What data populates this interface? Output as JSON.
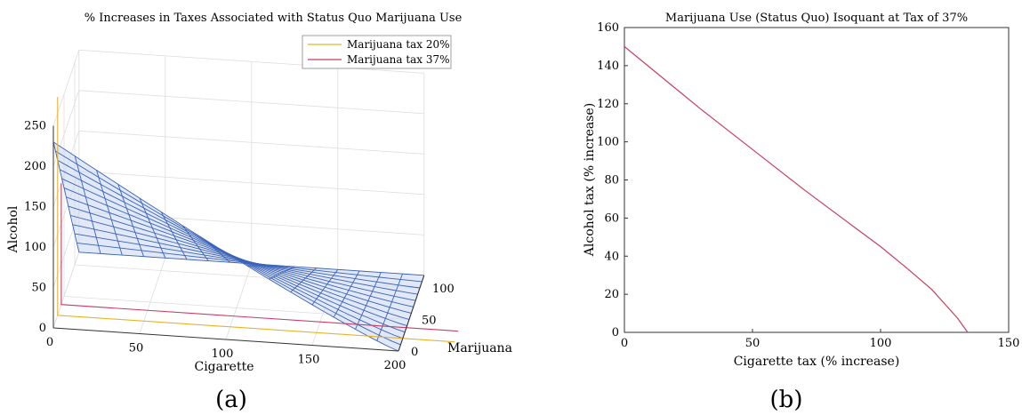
{
  "colors": {
    "tax20": "#eab22b",
    "tax37": "#c73e63",
    "surface_edge": "#3a62b8",
    "surface_fill": "#c9d5f2",
    "grid": "#dedede",
    "axis": "#333333"
  },
  "panel_a": {
    "label": "(a)",
    "chart_data": {
      "type": "surface3d",
      "title": "% Increases in Taxes Associated with Status Quo Marijuana Use",
      "xlabel": "Cigarette",
      "ylabel": "Marijuana",
      "zlabel": "Alcohol",
      "xlim": [
        0,
        200
      ],
      "ylim": [
        0,
        120
      ],
      "zlim": [
        0,
        250
      ],
      "xticks": [
        "0",
        "50",
        "100",
        "150",
        "200"
      ],
      "yticks": [
        "0",
        "50",
        "100"
      ],
      "zticks": [
        "0",
        "50",
        "100",
        "150",
        "200",
        "250"
      ],
      "legend_position": "top-right",
      "legend": [
        "Marijuana tax 20%",
        "Marijuana tax 37%"
      ],
      "series": [
        {
          "name": "Marijuana tax 20%",
          "marijuana": 20,
          "cigarette": [
            0,
            200
          ],
          "alcohol_at_cigarette_0": 270,
          "alcohol_at_cigarette_200": 0
        },
        {
          "name": "Marijuana tax 37%",
          "marijuana": 37,
          "cigarette": [
            0,
            200
          ],
          "alcohol_at_cigarette_0": 150,
          "alcohol_at_cigarette_200": 0
        }
      ],
      "surface": {
        "marijuana_range": [
          0,
          120
        ],
        "cigarette_range": [
          0,
          200
        ],
        "alcohol_peak": 230
      }
    }
  },
  "panel_b": {
    "label": "(b)",
    "chart_data": {
      "type": "line",
      "title": "Marijuana Use (Status Quo) Isoquant at Tax of 37%",
      "xlabel": "Cigarette tax (% increase)",
      "ylabel": "Alcohol tax (% increase)",
      "xlim": [
        0,
        150
      ],
      "ylim": [
        0,
        160
      ],
      "xticks": [
        0,
        50,
        100,
        150
      ],
      "yticks": [
        0,
        20,
        40,
        60,
        80,
        100,
        120,
        140,
        160
      ],
      "grid": false,
      "series": [
        {
          "x": [
            0,
            10,
            20,
            30,
            40,
            50,
            60,
            70,
            80,
            90,
            100,
            110,
            120,
            130,
            134
          ],
          "y": [
            150,
            139,
            128,
            117,
            106.5,
            96,
            85.5,
            75,
            65,
            55,
            45,
            34,
            22.5,
            7.5,
            0
          ]
        }
      ]
    }
  }
}
